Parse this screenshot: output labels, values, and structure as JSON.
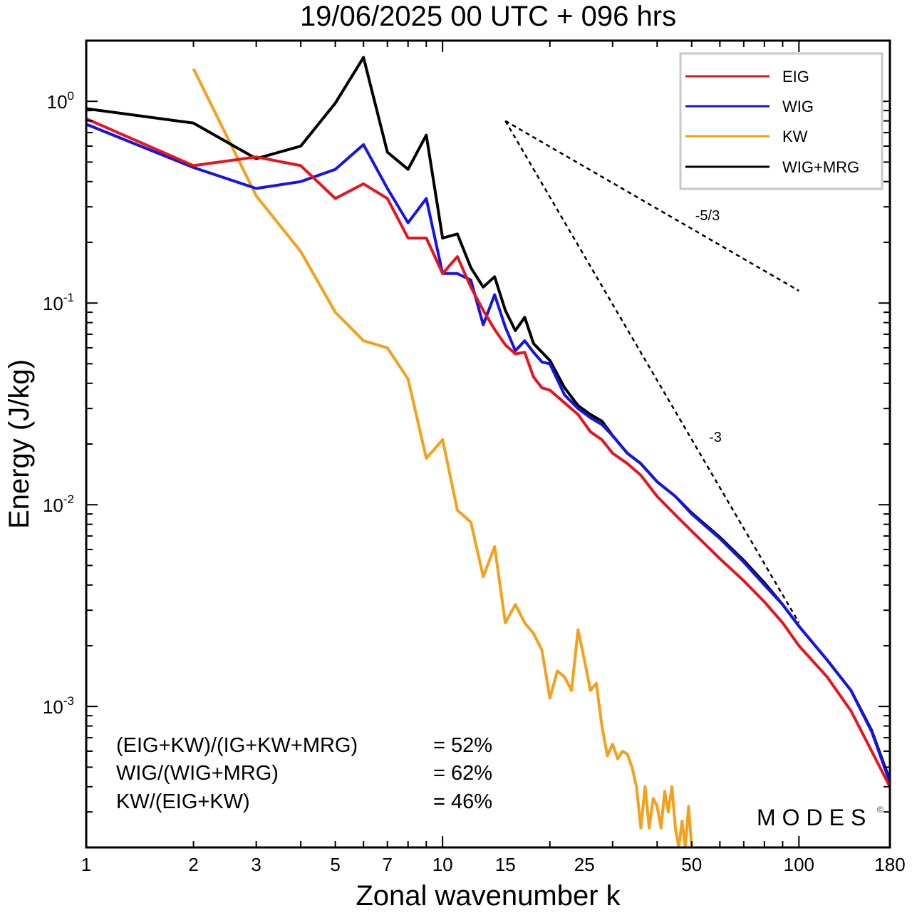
{
  "chart_data": {
    "type": "line",
    "title": "19/06/2025  00 UTC  + 096 hrs",
    "xlabel": "Zonal wavenumber k",
    "ylabel": "Energy (J/kg)",
    "xscale": "log",
    "yscale": "log",
    "xlim": [
      1,
      180
    ],
    "ylim": [
      0.0002,
      2.0
    ],
    "x_ticks": [
      "1",
      "2",
      "3",
      "5",
      "7",
      "10",
      "15",
      "25",
      "50",
      "100",
      "180"
    ],
    "y_ticks": [
      {
        "base": "10",
        "exp": "0"
      },
      {
        "base": "10",
        "exp": "-1"
      },
      {
        "base": "10",
        "exp": "-2"
      },
      {
        "base": "10",
        "exp": "-3"
      }
    ],
    "legend_position": "top-right",
    "series": [
      {
        "name": "EIG",
        "color": "#e8141b",
        "points": [
          [
            1,
            0.82
          ],
          [
            2,
            0.48
          ],
          [
            3,
            0.53
          ],
          [
            4,
            0.48
          ],
          [
            5,
            0.33
          ],
          [
            6,
            0.39
          ],
          [
            7,
            0.33
          ],
          [
            8,
            0.21
          ],
          [
            9,
            0.21
          ],
          [
            10,
            0.14
          ],
          [
            11,
            0.17
          ],
          [
            12,
            0.12
          ],
          [
            13,
            0.092
          ],
          [
            14,
            0.074
          ],
          [
            15,
            0.062
          ],
          [
            16,
            0.056
          ],
          [
            17,
            0.057
          ],
          [
            18,
            0.043
          ],
          [
            19,
            0.038
          ],
          [
            20,
            0.037
          ],
          [
            22,
            0.032
          ],
          [
            24,
            0.028
          ],
          [
            26,
            0.023
          ],
          [
            28,
            0.021
          ],
          [
            30,
            0.018
          ],
          [
            33,
            0.016
          ],
          [
            36,
            0.014
          ],
          [
            40,
            0.011
          ],
          [
            45,
            0.0089
          ],
          [
            50,
            0.0074
          ],
          [
            60,
            0.0054
          ],
          [
            70,
            0.0042
          ],
          [
            80,
            0.0033
          ],
          [
            90,
            0.0026
          ],
          [
            100,
            0.002
          ],
          [
            120,
            0.0014
          ],
          [
            140,
            0.00095
          ],
          [
            160,
            0.0006
          ],
          [
            180,
            0.0004
          ]
        ]
      },
      {
        "name": "WIG",
        "color": "#1414e8",
        "points": [
          [
            1,
            0.77
          ],
          [
            2,
            0.47
          ],
          [
            3,
            0.37
          ],
          [
            4,
            0.4
          ],
          [
            5,
            0.46
          ],
          [
            6,
            0.61
          ],
          [
            7,
            0.37
          ],
          [
            8,
            0.25
          ],
          [
            9,
            0.33
          ],
          [
            10,
            0.14
          ],
          [
            11,
            0.14
          ],
          [
            12,
            0.13
          ],
          [
            13,
            0.078
          ],
          [
            14,
            0.11
          ],
          [
            15,
            0.076
          ],
          [
            16,
            0.058
          ],
          [
            17,
            0.065
          ],
          [
            18,
            0.057
          ],
          [
            19,
            0.051
          ],
          [
            20,
            0.05
          ],
          [
            22,
            0.035
          ],
          [
            24,
            0.03
          ],
          [
            26,
            0.027
          ],
          [
            28,
            0.025
          ],
          [
            30,
            0.022
          ],
          [
            33,
            0.018
          ],
          [
            36,
            0.016
          ],
          [
            40,
            0.013
          ],
          [
            45,
            0.011
          ],
          [
            50,
            0.009
          ],
          [
            60,
            0.0068
          ],
          [
            70,
            0.0052
          ],
          [
            80,
            0.004
          ],
          [
            90,
            0.0032
          ],
          [
            100,
            0.0025
          ],
          [
            120,
            0.0017
          ],
          [
            140,
            0.0012
          ],
          [
            160,
            0.00075
          ],
          [
            180,
            0.00042
          ]
        ]
      },
      {
        "name": "KW",
        "color": "#f5a01a",
        "points": [
          [
            2,
            1.45
          ],
          [
            3,
            0.34
          ],
          [
            4,
            0.18
          ],
          [
            5,
            0.09
          ],
          [
            6,
            0.065
          ],
          [
            7,
            0.06
          ],
          [
            8,
            0.042
          ],
          [
            9,
            0.017
          ],
          [
            10,
            0.021
          ],
          [
            11,
            0.0094
          ],
          [
            12,
            0.0082
          ],
          [
            13,
            0.0044
          ],
          [
            14,
            0.0062
          ],
          [
            15,
            0.0026
          ],
          [
            16,
            0.0032
          ],
          [
            17,
            0.0026
          ],
          [
            18,
            0.0023
          ],
          [
            19,
            0.0019
          ],
          [
            20,
            0.0011
          ],
          [
            21,
            0.0015
          ],
          [
            22,
            0.0014
          ],
          [
            23,
            0.0012
          ],
          [
            24,
            0.0024
          ],
          [
            25,
            0.0017
          ],
          [
            26,
            0.0012
          ],
          [
            27,
            0.0013
          ],
          [
            28,
            0.0008
          ],
          [
            29,
            0.00057
          ],
          [
            30,
            0.00065
          ],
          [
            31,
            0.00055
          ],
          [
            32,
            0.0006
          ],
          [
            33,
            0.00058
          ],
          [
            34,
            0.0005
          ],
          [
            35,
            0.0004
          ],
          [
            36,
            0.00025
          ],
          [
            37,
            0.0004
          ],
          [
            38,
            0.00025
          ],
          [
            39,
            0.00035
          ],
          [
            40,
            0.00032
          ],
          [
            41,
            0.00025
          ],
          [
            42,
            0.00038
          ],
          [
            43,
            0.0003
          ],
          [
            44,
            0.0004
          ],
          [
            45,
            0.00025
          ],
          [
            46,
            0.0002
          ],
          [
            47,
            0.00027
          ],
          [
            48,
            0.0002
          ],
          [
            49,
            0.00032
          ],
          [
            50,
            0.0002
          ]
        ]
      },
      {
        "name": "WIG+MRG",
        "color": "#000000",
        "points": [
          [
            1,
            0.92
          ],
          [
            2,
            0.78
          ],
          [
            3,
            0.52
          ],
          [
            4,
            0.6
          ],
          [
            5,
            0.98
          ],
          [
            6,
            1.65
          ],
          [
            7,
            0.56
          ],
          [
            8,
            0.46
          ],
          [
            9,
            0.68
          ],
          [
            10,
            0.21
          ],
          [
            11,
            0.22
          ],
          [
            12,
            0.15
          ],
          [
            13,
            0.12
          ],
          [
            14,
            0.135
          ],
          [
            15,
            0.092
          ],
          [
            16,
            0.073
          ],
          [
            17,
            0.085
          ],
          [
            18,
            0.063
          ],
          [
            19,
            0.057
          ],
          [
            20,
            0.052
          ],
          [
            22,
            0.038
          ],
          [
            24,
            0.031
          ],
          [
            26,
            0.028
          ],
          [
            28,
            0.026
          ],
          [
            30,
            0.022
          ],
          [
            33,
            0.018
          ],
          [
            36,
            0.016
          ],
          [
            40,
            0.013
          ],
          [
            45,
            0.011
          ],
          [
            50,
            0.0091
          ],
          [
            60,
            0.0069
          ],
          [
            70,
            0.0053
          ],
          [
            80,
            0.0041
          ],
          [
            90,
            0.0032
          ],
          [
            100,
            0.0025
          ],
          [
            120,
            0.0017
          ],
          [
            140,
            0.0012
          ],
          [
            160,
            0.00076
          ],
          [
            180,
            0.00043
          ]
        ]
      }
    ],
    "reference_lines": [
      {
        "label": "-5/3",
        "points": [
          [
            15,
            0.8
          ],
          [
            100,
            0.115
          ]
        ]
      },
      {
        "label": "-3",
        "points": [
          [
            15,
            0.8
          ],
          [
            100,
            0.0026
          ]
        ]
      }
    ],
    "annotations": [
      {
        "label": "(EIG+KW)/(IG+KW+MRG)",
        "value": "= 52%"
      },
      {
        "label": "WIG/(WIG+MRG)",
        "value": "= 62%"
      },
      {
        "label": "KW/(EIG+KW)",
        "value": "= 46%"
      }
    ],
    "watermark": "MODES",
    "watermark_mark": "©"
  }
}
